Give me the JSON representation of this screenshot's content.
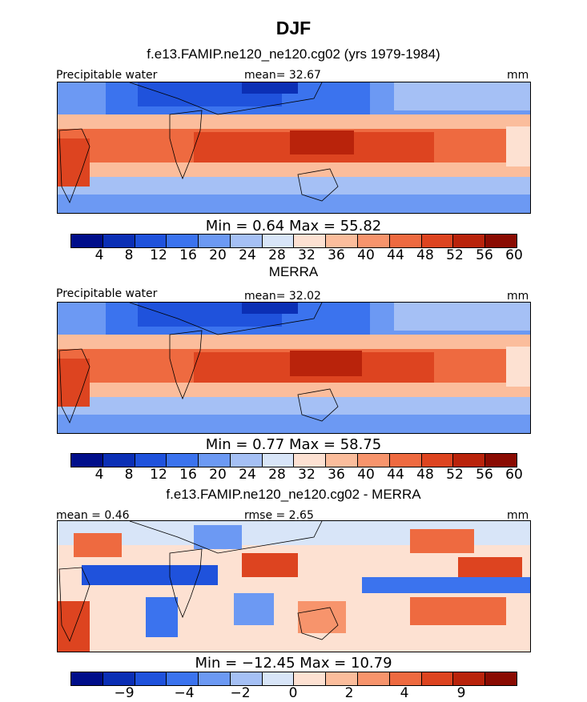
{
  "season": "DJF",
  "case_title": "f.e13.FAMIP.ne120_ne120.cg02 (yrs 1979-1984)",
  "colors": {
    "abs_scale": [
      "#000e8a",
      "#0b2fb5",
      "#1f52dc",
      "#3b73ee",
      "#6c99f3",
      "#a5c0f5",
      "#d8e5f8",
      "#fde1d2",
      "#fbbd9c",
      "#f7946c",
      "#ee6a40",
      "#dd4420",
      "#b9230b",
      "#8a0b02"
    ],
    "diff_scale": [
      "#000e8a",
      "#0b2fb5",
      "#1f52dc",
      "#3b73ee",
      "#6c99f3",
      "#a5c0f5",
      "#d8e5f8",
      "#fde1d2",
      "#fbbd9c",
      "#f7946c",
      "#ee6a40",
      "#dd4420",
      "#b9230b",
      "#8a0b02"
    ]
  },
  "panels": [
    {
      "label_left": "Precipitable water",
      "stat_center": "mean=  32.67",
      "units": "mm",
      "minmax": "Min =    0.64  Max =   55.82"
    },
    {
      "title": "MERRA",
      "label_left": "Precipitable water",
      "stat_center": "mean=  32.02",
      "units": "mm",
      "minmax": "Min =    0.77  Max =   58.75"
    },
    {
      "title": "f.e13.FAMIP.ne120_ne120.cg02 - MERRA",
      "label_left": "mean =    0.46",
      "stat_center": "rmse =    2.65",
      "units": "mm",
      "minmax": "Min = −12.45  Max =   10.79"
    }
  ],
  "chart_data": [
    {
      "type": "heatmap",
      "title": "Precipitable water (f.e13.FAMIP.ne120_ne120.cg02, DJF)",
      "units": "mm",
      "mean": 32.67,
      "min": 0.64,
      "max": 55.82,
      "colorbar_levels": [
        4,
        8,
        12,
        16,
        20,
        24,
        28,
        32,
        36,
        40,
        44,
        48,
        52,
        56,
        60
      ],
      "colorbar_tick_labels": [
        "4",
        "8",
        "12",
        "16",
        "20",
        "24",
        "28",
        "32",
        "36",
        "40",
        "44",
        "48",
        "52",
        "56",
        "60"
      ]
    },
    {
      "type": "heatmap",
      "title": "Precipitable water (MERRA, DJF)",
      "units": "mm",
      "mean": 32.02,
      "min": 0.77,
      "max": 58.75,
      "colorbar_levels": [
        4,
        8,
        12,
        16,
        20,
        24,
        28,
        32,
        36,
        40,
        44,
        48,
        52,
        56,
        60
      ],
      "colorbar_tick_labels": [
        "4",
        "8",
        "12",
        "16",
        "20",
        "24",
        "28",
        "32",
        "36",
        "40",
        "44",
        "48",
        "52",
        "56",
        "60"
      ]
    },
    {
      "type": "heatmap",
      "title": "f.e13.FAMIP.ne120_ne120.cg02 - MERRA",
      "units": "mm",
      "mean": 0.46,
      "rmse": 2.65,
      "min": -12.45,
      "max": 10.79,
      "colorbar_tick_labels": [
        "−9",
        "−4",
        "−2",
        "0",
        "2",
        "4",
        "9"
      ]
    }
  ]
}
